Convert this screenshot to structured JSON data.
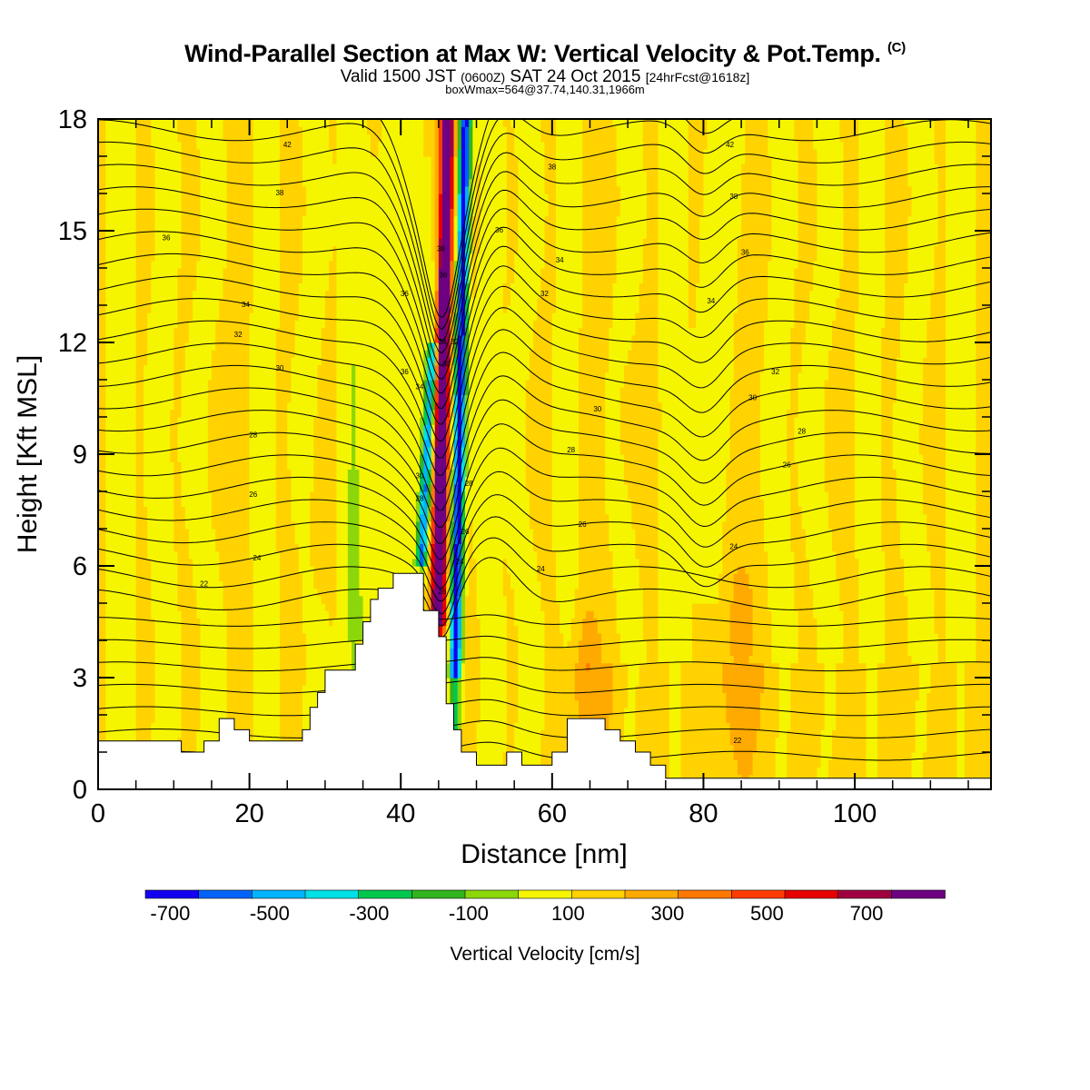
{
  "title": {
    "main": "Wind-Parallel Section at Max W: Vertical Velocity & Pot.Temp.",
    "copyright_mark": "(C)",
    "valid_prefix": "Valid 1500 JST",
    "valid_utc": "(0600Z)",
    "valid_date": "SAT 24 Oct 2015",
    "forecast": "[24hrFcst@1618z]",
    "box_info": "boxWmax=564@37.74,140.31,1966m"
  },
  "colors": {
    "terrain": "#ffffff",
    "contour_line": "#000000"
  },
  "chart_data": {
    "type": "heatmap",
    "xlabel": "Distance [nm]",
    "ylabel": "Height [Kft MSL]",
    "xlim": [
      0,
      118
    ],
    "ylim": [
      0,
      18
    ],
    "x_ticks": [
      0,
      20,
      40,
      60,
      80,
      100
    ],
    "y_ticks": [
      0,
      3,
      6,
      9,
      12,
      15,
      18
    ],
    "colorbar": {
      "label": "Vertical Velocity [cm/s]",
      "tick_labels": [
        "-700",
        "-500",
        "-300",
        "-100",
        "100",
        "300",
        "500",
        "700"
      ],
      "tick_values": [
        -700,
        -500,
        -300,
        -100,
        100,
        300,
        500,
        700
      ],
      "min": -800,
      "max": 800,
      "step": 100,
      "colors": [
        "#1400f0",
        "#0064f8",
        "#00b4ff",
        "#00e1e6",
        "#00c84f",
        "#32b41e",
        "#8cd70a",
        "#f5f500",
        "#ffd200",
        "#ffaa00",
        "#ff7800",
        "#ff3c00",
        "#e60000",
        "#a00041",
        "#6e0082"
      ]
    },
    "terrain_profile": [
      [
        0,
        1.3
      ],
      [
        11,
        1.3
      ],
      [
        11,
        1.0
      ],
      [
        14,
        1.0
      ],
      [
        14,
        1.3
      ],
      [
        16,
        1.3
      ],
      [
        16,
        1.9
      ],
      [
        18,
        1.9
      ],
      [
        18,
        1.6
      ],
      [
        20,
        1.6
      ],
      [
        20,
        1.3
      ],
      [
        27,
        1.3
      ],
      [
        27,
        1.6
      ],
      [
        28,
        1.6
      ],
      [
        28,
        2.2
      ],
      [
        29,
        2.2
      ],
      [
        29,
        2.6
      ],
      [
        30,
        2.6
      ],
      [
        30,
        3.2
      ],
      [
        34,
        3.2
      ],
      [
        34,
        3.9
      ],
      [
        35,
        3.9
      ],
      [
        35,
        4.5
      ],
      [
        36,
        4.5
      ],
      [
        36,
        5.1
      ],
      [
        37,
        5.1
      ],
      [
        37,
        5.4
      ],
      [
        39,
        5.4
      ],
      [
        39,
        5.8
      ],
      [
        43,
        5.8
      ],
      [
        43,
        4.8
      ],
      [
        45,
        4.8
      ],
      [
        45,
        4.1
      ],
      [
        46,
        4.1
      ],
      [
        46,
        2.3
      ],
      [
        47,
        2.3
      ],
      [
        47,
        1.6
      ],
      [
        48,
        1.6
      ],
      [
        48,
        1.0
      ],
      [
        50,
        1.0
      ],
      [
        50,
        0.65
      ],
      [
        54,
        0.65
      ],
      [
        54,
        1.0
      ],
      [
        56,
        1.0
      ],
      [
        56,
        0.65
      ],
      [
        60,
        0.65
      ],
      [
        60,
        1.0
      ],
      [
        62,
        1.0
      ],
      [
        62,
        1.9
      ],
      [
        67,
        1.9
      ],
      [
        67,
        1.6
      ],
      [
        69,
        1.6
      ],
      [
        69,
        1.3
      ],
      [
        71,
        1.3
      ],
      [
        71,
        1.0
      ],
      [
        73,
        1.0
      ],
      [
        73,
        0.65
      ],
      [
        75,
        0.65
      ],
      [
        75,
        0.3
      ],
      [
        118,
        0.3
      ]
    ],
    "theta_contours_K": [
      20,
      22,
      24,
      26,
      28,
      30,
      32,
      34,
      36,
      38,
      40,
      42,
      44
    ],
    "annotations": [
      {
        "text": "42",
        "x": 25,
        "y": 17.3
      },
      {
        "text": "38",
        "x": 24,
        "y": 16.0
      },
      {
        "text": "36",
        "x": 9,
        "y": 14.8
      },
      {
        "text": "34",
        "x": 19.5,
        "y": 13.0
      },
      {
        "text": "32",
        "x": 18.5,
        "y": 12.2
      },
      {
        "text": "30",
        "x": 24,
        "y": 11.3
      },
      {
        "text": "28",
        "x": 20.5,
        "y": 9.5
      },
      {
        "text": "26",
        "x": 20.5,
        "y": 7.9
      },
      {
        "text": "24",
        "x": 21,
        "y": 6.2
      },
      {
        "text": "22",
        "x": 14,
        "y": 5.5
      },
      {
        "text": "36",
        "x": 40.5,
        "y": 13.3
      },
      {
        "text": "36",
        "x": 40.5,
        "y": 11.2
      },
      {
        "text": "34",
        "x": 42.5,
        "y": 10.8
      },
      {
        "text": "30",
        "x": 42.5,
        "y": 8.4
      },
      {
        "text": "28",
        "x": 42.5,
        "y": 7.8
      },
      {
        "text": "38",
        "x": 45.3,
        "y": 14.5
      },
      {
        "text": "36",
        "x": 45.6,
        "y": 13.8
      },
      {
        "text": "34",
        "x": 45.5,
        "y": 12.0
      },
      {
        "text": "32",
        "x": 47.1,
        "y": 12.0
      },
      {
        "text": "30",
        "x": 46.0,
        "y": 11.4
      },
      {
        "text": "28",
        "x": 49.0,
        "y": 8.2
      },
      {
        "text": "26",
        "x": 48.5,
        "y": 6.9
      },
      {
        "text": "24",
        "x": 47.8,
        "y": 6.1
      },
      {
        "text": "26",
        "x": 45.5,
        "y": 5.3
      },
      {
        "text": "36",
        "x": 53,
        "y": 15.0
      },
      {
        "text": "38",
        "x": 60,
        "y": 16.7
      },
      {
        "text": "34",
        "x": 61,
        "y": 14.2
      },
      {
        "text": "32",
        "x": 59,
        "y": 13.3
      },
      {
        "text": "30",
        "x": 66,
        "y": 10.2
      },
      {
        "text": "28",
        "x": 62.5,
        "y": 9.1
      },
      {
        "text": "26",
        "x": 64,
        "y": 7.1
      },
      {
        "text": "24",
        "x": 58.5,
        "y": 5.9
      },
      {
        "text": "42",
        "x": 83.5,
        "y": 17.3
      },
      {
        "text": "38",
        "x": 84,
        "y": 15.9
      },
      {
        "text": "36",
        "x": 85.5,
        "y": 14.4
      },
      {
        "text": "34",
        "x": 81,
        "y": 13.1
      },
      {
        "text": "32",
        "x": 89.5,
        "y": 11.2
      },
      {
        "text": "30",
        "x": 86.5,
        "y": 10.5
      },
      {
        "text": "28",
        "x": 93,
        "y": 9.6
      },
      {
        "text": "26",
        "x": 91,
        "y": 8.7
      },
      {
        "text": "24",
        "x": 84,
        "y": 6.5
      },
      {
        "text": "22",
        "x": 84.5,
        "y": 1.3
      }
    ]
  }
}
